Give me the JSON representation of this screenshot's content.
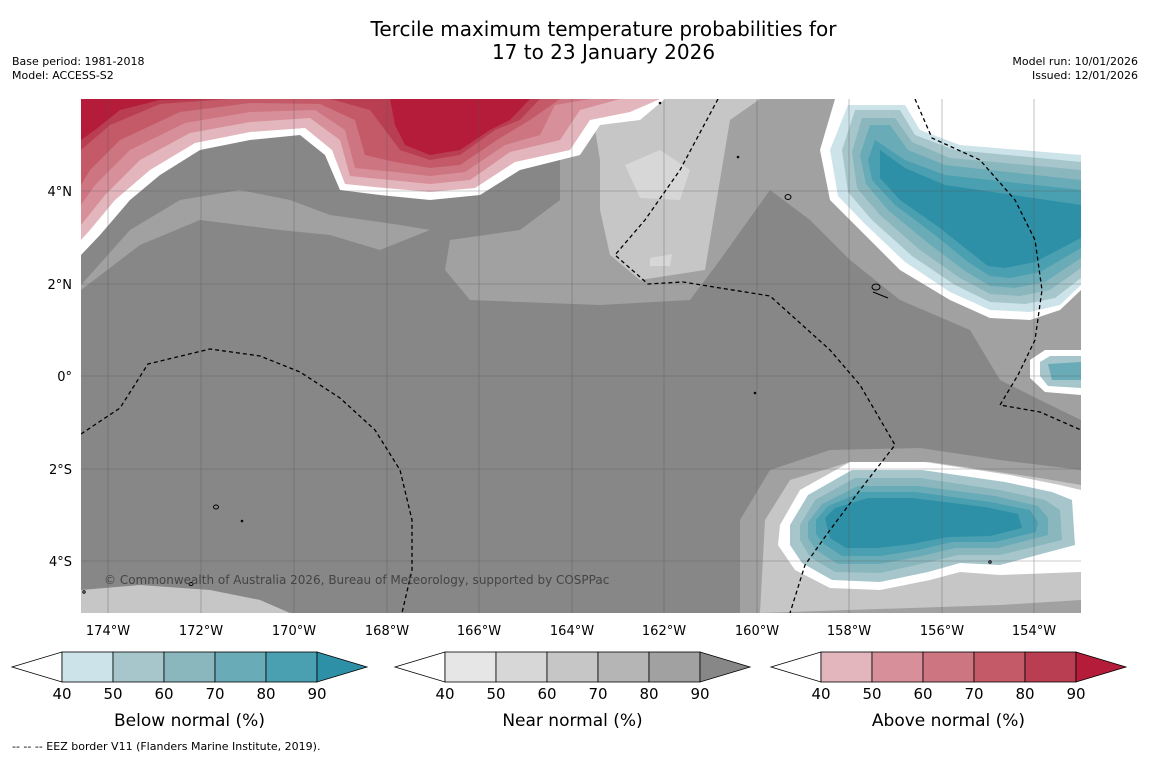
{
  "header": {
    "title_line1": "Tercile maximum temperature probabilities for",
    "title_line2": "17 to 23 January 2026",
    "base_period": "Base period: 1981-2018",
    "model": "Model: ACCESS-S2",
    "model_run": "Model run: 10/01/2026",
    "issued": "Issued: 12/01/2026"
  },
  "map": {
    "copyright": "© Commonwealth of Australia 2026, Bureau of Meteorology, supported by COSPPac",
    "lon_ticks": [
      "174°W",
      "172°W",
      "170°W",
      "168°W",
      "166°W",
      "164°W",
      "162°W",
      "160°W",
      "158°W",
      "156°W",
      "154°W"
    ],
    "lat_ticks": [
      "4°N",
      "2°N",
      "0°",
      "2°S",
      "4°S"
    ]
  },
  "colorbars": [
    {
      "label": "Below normal (%)",
      "ticks": [
        "40",
        "50",
        "60",
        "70",
        "80",
        "90"
      ],
      "colors": [
        "#cde3ea",
        "#a6c6cc",
        "#8ab6bd",
        "#6aabb8",
        "#4a9fb0",
        "#2e90a6"
      ]
    },
    {
      "label": "Near normal (%)",
      "ticks": [
        "40",
        "50",
        "60",
        "70",
        "80",
        "90"
      ],
      "colors": [
        "#e6e6e6",
        "#d7d7d7",
        "#c6c6c6",
        "#b5b5b5",
        "#a1a1a1",
        "#878787"
      ]
    },
    {
      "label": "Above normal (%)",
      "ticks": [
        "40",
        "50",
        "60",
        "70",
        "80",
        "90"
      ],
      "colors": [
        "#e3b6bd",
        "#d78f9a",
        "#cd7581",
        "#c45a68",
        "#ba3e52",
        "#b41c3a"
      ]
    }
  ],
  "legend_note": "--  --  -- EEZ border V11 (Flanders Marine Institute, 2019)."
}
